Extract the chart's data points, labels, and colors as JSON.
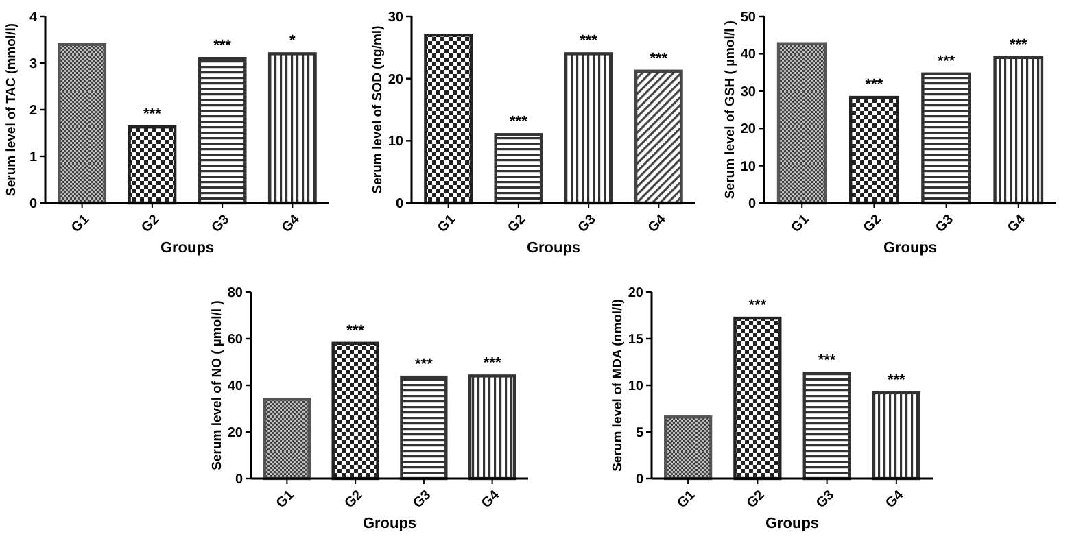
{
  "chart_data": [
    {
      "type": "bar",
      "xlabel": "Groups",
      "ylabel": "Serum level of TAC (mmol/l)",
      "categories": [
        "G1",
        "G2",
        "G3",
        "G4"
      ],
      "values": [
        3.4,
        1.63,
        3.1,
        3.2
      ],
      "colors": [
        "#555555",
        "#222222",
        "#333333",
        "#333333"
      ],
      "ylim": [
        0,
        4
      ],
      "yticks": [
        0,
        1,
        2,
        3,
        4
      ],
      "grid": false,
      "annotations": [
        {
          "text": "***",
          "x": "G2",
          "y": 1.63
        },
        {
          "text": "***",
          "x": "G3",
          "y": 3.1
        },
        {
          "text": "*",
          "x": "G4",
          "y": 3.2
        }
      ]
    },
    {
      "type": "bar",
      "xlabel": "Groups",
      "ylabel": "Serum level of SOD (ng/ml)",
      "categories": [
        "G1",
        "G2",
        "G3",
        "G4"
      ],
      "values": [
        27,
        11,
        24,
        21.2
      ],
      "colors": [
        "#222222",
        "#333333",
        "#333333",
        "#444444"
      ],
      "ylim": [
        0,
        30
      ],
      "yticks": [
        0,
        10,
        20,
        30
      ],
      "grid": false,
      "annotations": [
        {
          "text": "***",
          "x": "G2",
          "y": 11
        },
        {
          "text": "***",
          "x": "G3",
          "y": 24
        },
        {
          "text": "***",
          "x": "G4",
          "y": 21.2
        }
      ]
    },
    {
      "type": "bar",
      "xlabel": "Groups",
      "ylabel": "Serum level of GSH ( µmol/l )",
      "categories": [
        "G1",
        "G2",
        "G3",
        "G4"
      ],
      "values": [
        42.7,
        28.3,
        34.6,
        39
      ],
      "colors": [
        "#555555",
        "#222222",
        "#333333",
        "#333333"
      ],
      "ylim": [
        0,
        50
      ],
      "yticks": [
        0,
        10,
        20,
        30,
        40,
        50
      ],
      "grid": false,
      "annotations": [
        {
          "text": "***",
          "x": "G2",
          "y": 28.3
        },
        {
          "text": "***",
          "x": "G3",
          "y": 34.6
        },
        {
          "text": "***",
          "x": "G4",
          "y": 39
        }
      ]
    },
    {
      "type": "bar",
      "xlabel": "Groups",
      "ylabel": "Serum level of NO ( µmol/l )",
      "categories": [
        "G1",
        "G2",
        "G3",
        "G4"
      ],
      "values": [
        34,
        58,
        43.5,
        44
      ],
      "colors": [
        "#555555",
        "#222222",
        "#333333",
        "#333333"
      ],
      "ylim": [
        0,
        80
      ],
      "yticks": [
        0,
        20,
        40,
        60,
        80
      ],
      "grid": false,
      "annotations": [
        {
          "text": "***",
          "x": "G2",
          "y": 58
        },
        {
          "text": "***",
          "x": "G3",
          "y": 43.5
        },
        {
          "text": "***",
          "x": "G4",
          "y": 44
        }
      ]
    },
    {
      "type": "bar",
      "xlabel": "Groups",
      "ylabel": "Serum level of MDA (nmol/l)",
      "categories": [
        "G1",
        "G2",
        "G3",
        "G4"
      ],
      "values": [
        6.6,
        17.2,
        11.3,
        9.2
      ],
      "colors": [
        "#555555",
        "#222222",
        "#333333",
        "#333333"
      ],
      "ylim": [
        0,
        20
      ],
      "yticks": [
        0,
        5,
        10,
        15,
        20
      ],
      "grid": false,
      "annotations": [
        {
          "text": "***",
          "x": "G2",
          "y": 17.2
        },
        {
          "text": "***",
          "x": "G3",
          "y": 11.3
        },
        {
          "text": "***",
          "x": "G4",
          "y": 9.2
        }
      ]
    }
  ]
}
